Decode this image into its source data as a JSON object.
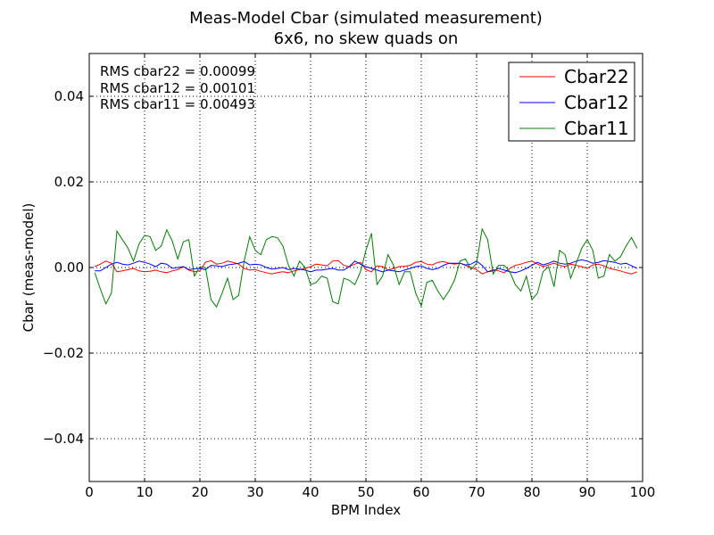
{
  "chart_data": {
    "type": "line",
    "title": "Meas-Model Cbar (simulated measurement)",
    "subtitle": "6x6, no skew quads on",
    "xlabel": "BPM Index",
    "ylabel": "Cbar (meas-model)",
    "xlim": [
      0,
      100
    ],
    "ylim": [
      -0.05,
      0.05
    ],
    "xticks": [
      0,
      10,
      20,
      30,
      40,
      50,
      60,
      70,
      80,
      90,
      100
    ],
    "xtick_labels": [
      "0",
      "10",
      "20",
      "30",
      "40",
      "50",
      "60",
      "70",
      "80",
      "90",
      "100"
    ],
    "yticks": [
      -0.04,
      -0.02,
      0.0,
      0.02,
      0.04
    ],
    "ytick_labels": [
      "−0.04",
      "−0.02",
      "0.00",
      "0.02",
      "0.04"
    ],
    "grid": true,
    "legend_position": "top-right",
    "annotations": [
      "RMS cbar22 = 0.00099",
      "RMS cbar12 = 0.00101",
      "RMS cbar11 = 0.00493"
    ],
    "x": [
      1,
      2,
      3,
      4,
      5,
      6,
      7,
      8,
      9,
      10,
      11,
      12,
      13,
      14,
      15,
      16,
      17,
      18,
      19,
      20,
      21,
      22,
      23,
      24,
      25,
      26,
      27,
      28,
      29,
      30,
      31,
      32,
      33,
      34,
      35,
      36,
      37,
      38,
      39,
      40,
      41,
      42,
      43,
      44,
      45,
      46,
      47,
      48,
      49,
      50,
      51,
      52,
      53,
      54,
      55,
      56,
      57,
      58,
      59,
      60,
      61,
      62,
      63,
      64,
      65,
      66,
      67,
      68,
      69,
      70,
      71,
      72,
      73,
      74,
      75,
      76,
      77,
      78,
      79,
      80,
      81,
      82,
      83,
      84,
      85,
      86,
      87,
      88,
      89,
      90,
      91,
      92,
      93,
      94,
      95,
      96,
      97,
      98,
      99
    ],
    "series": [
      {
        "name": "Cbar22",
        "color": "#ff0000",
        "values": [
          0.0002,
          0.0008,
          0.0015,
          0.001,
          -0.001,
          -0.0008,
          -0.0005,
          -0.0002,
          -0.0008,
          -0.001,
          -0.0009,
          -0.0006,
          -0.001,
          -0.0012,
          -0.0008,
          -0.0005,
          0.0002,
          -0.0006,
          -0.001,
          -0.0008,
          0.0012,
          0.0016,
          0.0008,
          0.001,
          0.0015,
          0.0012,
          0.0008,
          -0.0002,
          -0.0006,
          -0.0005,
          -0.0009,
          -0.0012,
          -0.0015,
          -0.0012,
          -0.001,
          -0.0012,
          -0.0008,
          -0.0005,
          -0.0002,
          0.0002,
          0.0008,
          0.0006,
          0.0004,
          0.0015,
          0.0016,
          0.0005,
          0.0002,
          0.0008,
          0.0012,
          -0.0005,
          -0.001,
          0.0004,
          0.0002,
          -0.0006,
          -0.0002,
          0.0002,
          0.0003,
          0.0005,
          0.0012,
          0.0014,
          0.0008,
          0.0006,
          0.0012,
          0.0014,
          0.001,
          0.0008,
          0.001,
          0.0005,
          0.0,
          -0.0005,
          -0.0015,
          -0.001,
          -0.0005,
          -0.0008,
          -0.0012,
          -0.0002,
          0.0005,
          0.0008,
          0.0012,
          0.0015,
          0.0008,
          0.0002,
          0.0006,
          0.001,
          0.0005,
          0.0002,
          0.0008,
          0.0005,
          0.0002,
          -0.0002,
          0.0006,
          0.0008,
          0.0004,
          -0.0002,
          -0.0005,
          -0.0008,
          -0.0012,
          -0.0015,
          -0.001
        ]
      },
      {
        "name": "Cbar12",
        "color": "#0000ff",
        "values": [
          -0.0008,
          -0.0008,
          0.0,
          0.0008,
          0.0012,
          0.0008,
          0.0006,
          0.001,
          0.0015,
          0.0012,
          0.0008,
          0.0002,
          0.001,
          0.0008,
          -0.0002,
          0.0,
          0.0002,
          -0.0005,
          -0.0003,
          -0.0002,
          -0.0005,
          0.0005,
          0.0004,
          0.0002,
          0.0006,
          0.0008,
          0.001,
          0.0014,
          0.0006,
          0.0008,
          0.0006,
          0.0,
          -0.0004,
          -0.0002,
          0.0,
          -0.0005,
          -0.0002,
          -0.0004,
          -0.0006,
          -0.001,
          -0.0006,
          -0.0006,
          -0.0004,
          -0.0002,
          -0.0006,
          -0.0006,
          0.0002,
          0.0015,
          0.0008,
          0.0002,
          -0.0002,
          -0.0006,
          -0.001,
          -0.0006,
          -0.0008,
          -0.001,
          -0.0006,
          -0.0002,
          0.0002,
          0.0004,
          -0.0002,
          -0.0005,
          -0.0002,
          0.0005,
          0.001,
          0.001,
          0.001,
          0.0006,
          0.0008,
          0.0015,
          0.0005,
          -0.001,
          -0.0008,
          -0.0002,
          -0.0006,
          -0.001,
          -0.0012,
          -0.0008,
          -0.0002,
          0.0005,
          0.0012,
          0.0006,
          0.001,
          0.0015,
          0.001,
          0.0008,
          0.001,
          0.0015,
          0.0018,
          0.0015,
          0.001,
          0.0012,
          0.0016,
          0.0014,
          0.0012,
          0.0008,
          0.001,
          0.0004,
          -0.0002
        ]
      },
      {
        "name": "Cbar11",
        "color": "#008000",
        "values": [
          -0.0012,
          -0.005,
          -0.0085,
          -0.006,
          0.0085,
          0.0065,
          0.0045,
          0.0015,
          0.0055,
          0.0075,
          0.0072,
          0.004,
          0.005,
          0.0088,
          0.0062,
          0.002,
          0.006,
          0.0065,
          -0.002,
          0.0002,
          0.0,
          -0.0075,
          -0.0092,
          -0.006,
          -0.0025,
          -0.0075,
          -0.0065,
          0.0015,
          0.0072,
          0.004,
          0.003,
          0.0065,
          0.0072,
          0.007,
          0.005,
          0.0005,
          -0.002,
          0.0015,
          0.0,
          -0.004,
          -0.0035,
          -0.002,
          -0.0025,
          -0.008,
          -0.0085,
          -0.0025,
          -0.003,
          -0.004,
          -0.001,
          0.004,
          0.008,
          -0.004,
          -0.002,
          0.003,
          0.0005,
          -0.004,
          -0.001,
          -0.001,
          -0.006,
          -0.009,
          -0.0035,
          -0.003,
          -0.0055,
          -0.0075,
          -0.0055,
          -0.003,
          0.0015,
          0.002,
          -0.0005,
          0.001,
          0.009,
          0.0065,
          -0.0015,
          0.0005,
          0.0005,
          -0.001,
          -0.004,
          -0.0055,
          -0.002,
          -0.0075,
          -0.006,
          -0.001,
          0.0002,
          -0.0045,
          0.004,
          0.003,
          -0.0025,
          0.001,
          0.0045,
          0.0065,
          0.004,
          -0.0025,
          -0.002,
          0.003,
          0.0015,
          0.0025,
          0.005,
          0.007,
          0.0045
        ]
      }
    ]
  }
}
